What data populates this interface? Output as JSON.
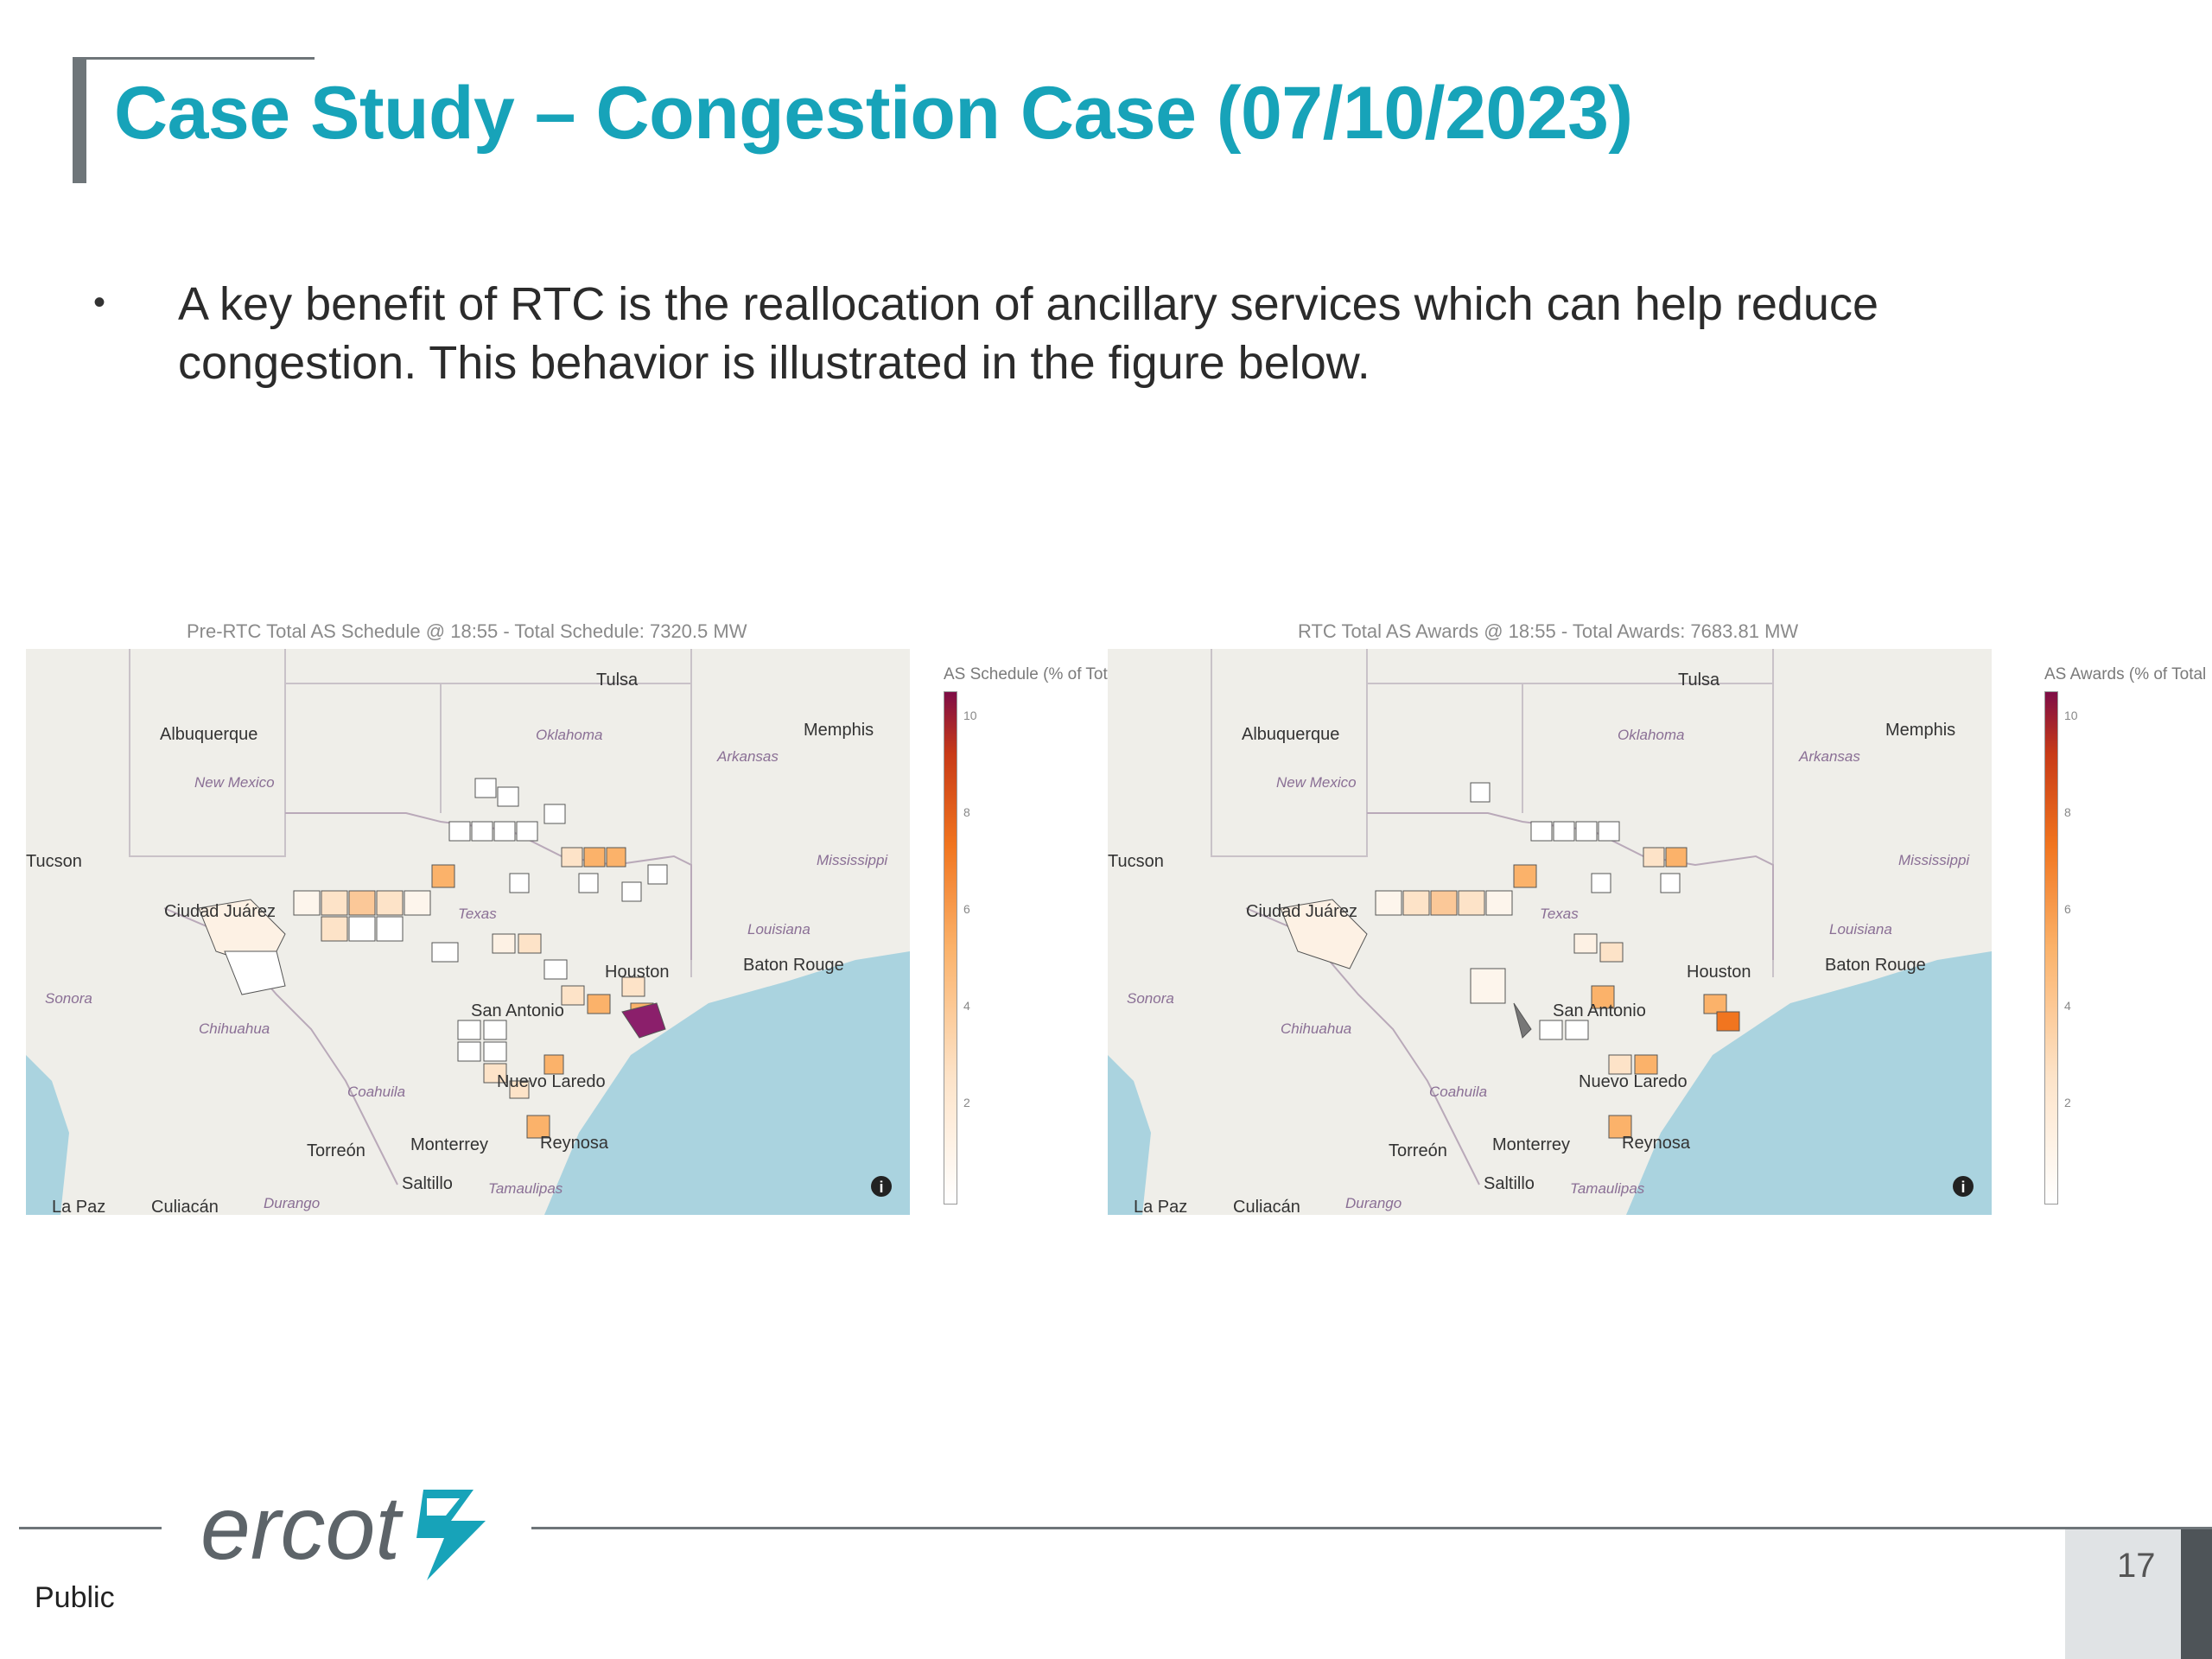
{
  "slide": {
    "title": "Case Study – Congestion Case (07/10/2023)",
    "bullet": "A key benefit of RTC is the reallocation of ancillary services which can help reduce congestion. This behavior is illustrated in the figure below.",
    "footer_label": "Public",
    "page_number": "17",
    "brand_logo": "ercot"
  },
  "maps": [
    {
      "title": "Pre-RTC Total AS Schedule @ 18:55 - Total Schedule: 7320.5 MW",
      "colorbar_label": "AS Schedule (% of Total)",
      "ticks": [
        "10",
        "8",
        "6",
        "4",
        "2"
      ]
    },
    {
      "title": "RTC Total AS Awards @ 18:55 - Total Awards: 7683.81 MW",
      "colorbar_label": "AS Awards (% of Total",
      "ticks": [
        "10",
        "8",
        "6",
        "4",
        "2"
      ]
    }
  ],
  "map_labels": {
    "tulsa": "Tulsa",
    "oklahoma": "Oklahoma",
    "albuquerque": "Albuquerque",
    "memphis": "Memphis",
    "arkansas": "Arkansas",
    "new_mexico": "New Mexico",
    "tucson": "Tucson",
    "mississippi": "Mississippi",
    "ciudad_juarez": "Ciudad Juárez",
    "texas": "Texas",
    "louisiana": "Louisiana",
    "baton_rouge": "Baton Rouge",
    "houston": "Houston",
    "sonora": "Sonora",
    "san_antonio": "San Antonio",
    "chihuahua": "Chihuahua",
    "coahuila": "Coahuila",
    "nuevo_laredo": "Nuevo Laredo",
    "torreon": "Torreón",
    "monterrey": "Monterrey",
    "reynosa": "Reynosa",
    "saltillo": "Saltillo",
    "tamaulipas": "Tamaulipas",
    "la_paz": "La Paz",
    "culiacan": "Culiacán",
    "durango": "Durango"
  },
  "colors": {
    "title": "#17a3b9",
    "land": "#efeee9",
    "water": "#aad3df",
    "scale": [
      "#ffffff",
      "#fde3c8",
      "#fbb26a",
      "#f1751f",
      "#c83a17",
      "#7e0d46"
    ]
  }
}
